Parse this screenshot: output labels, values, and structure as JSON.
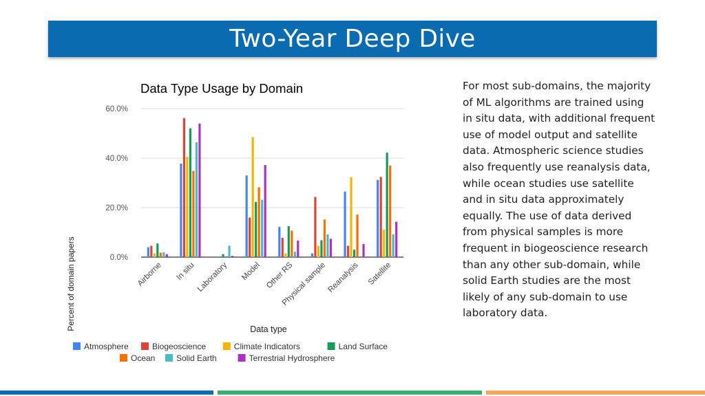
{
  "slide": {
    "title": "Two-Year Deep Dive",
    "body": "For most sub-domains, the majority of ML algorithms are trained using in situ data, with additional frequent use of model output and satellite data. Atmospheric science studies also frequently use reanalysis data, while ocean studies use satellite and in situ data approximately equally. The use of data derived from physical samples is more frequent in biogeoscience research than any other sub-domain, while solid Earth studies are the most likely of any sub-domain to use laboratory data."
  },
  "chart_data": {
    "type": "bar",
    "title": "Data Type Usage by Domain",
    "xlabel": "Data type",
    "ylabel": "Percent of domain papers",
    "ylim": [
      0,
      60
    ],
    "yticks": [
      "0.0%",
      "20.0%",
      "40.0%",
      "60.0%"
    ],
    "grid": true,
    "legend_position": "bottom",
    "categories": [
      "Airborne",
      "In situ",
      "Laboratory",
      "Model",
      "Other RS",
      "Physical sample",
      "Reanalysis",
      "Satellite"
    ],
    "series": [
      {
        "name": "Atmosphere",
        "color": "#4285f4",
        "values": [
          4.0,
          37.8,
          0,
          33.0,
          12.2,
          1.5,
          26.5,
          31.2
        ]
      },
      {
        "name": "Biogeoscience",
        "color": "#db4437",
        "values": [
          4.6,
          56.2,
          0,
          16.0,
          7.8,
          24.3,
          4.6,
          32.4
        ]
      },
      {
        "name": "Climate Indicators",
        "color": "#f4b400",
        "values": [
          1.5,
          40.5,
          0,
          48.5,
          1.5,
          4.6,
          32.3,
          11.1
        ]
      },
      {
        "name": "Land Surface",
        "color": "#0f9d58",
        "values": [
          5.5,
          52.0,
          1.2,
          22.3,
          12.5,
          6.8,
          3.0,
          42.2
        ]
      },
      {
        "name": "Ocean",
        "color": "#ff6d01",
        "values": [
          1.8,
          34.8,
          0,
          28.2,
          10.7,
          15.2,
          17.2,
          37.0
        ]
      },
      {
        "name": "Solid Earth",
        "color": "#46bdc6",
        "values": [
          2.0,
          46.4,
          4.6,
          23.2,
          2.2,
          9.2,
          0,
          9.2
        ]
      },
      {
        "name": "Terrestrial Hydrosphere",
        "color": "#ab30c4",
        "values": [
          1.2,
          54.0,
          0.5,
          37.2,
          6.7,
          7.4,
          5.3,
          14.3
        ]
      }
    ]
  }
}
